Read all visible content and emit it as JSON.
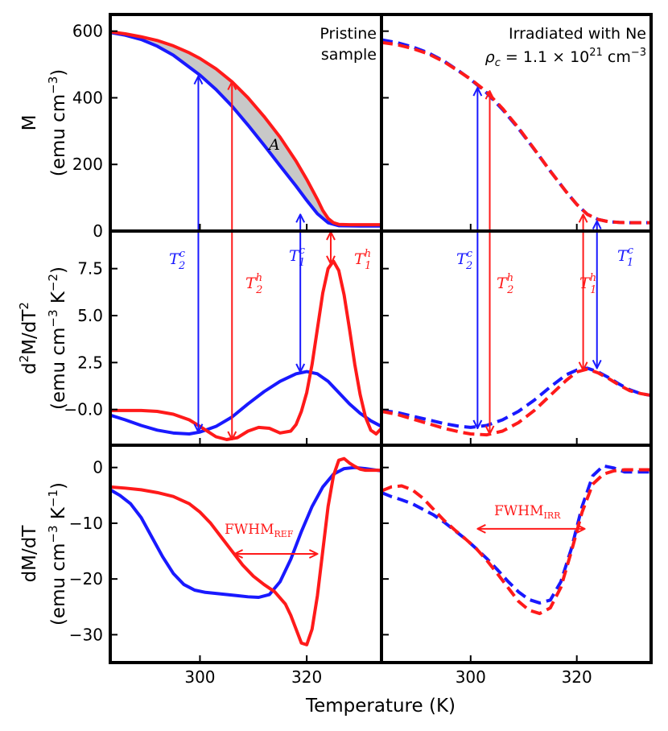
{
  "colors": {
    "blue": "#1919ff",
    "red": "#ff1a1a",
    "shade": "#c8c8c8",
    "frame": "#000000"
  },
  "chart_data": {
    "type": "line",
    "xlabel": "Temperature (K)",
    "xlim": [
      283.2,
      334.0
    ],
    "xticks": [
      300,
      320
    ],
    "xtick_labels": [
      "300",
      "320"
    ],
    "panels_left_title": "Pristine sample",
    "panels_right_title": "Irradiated with Ne",
    "right_note_rho": "ρ",
    "right_note_rho_sub": "c",
    "right_note_value": " = 1.1 × 10",
    "right_note_exp": "21",
    "right_note_unit": " cm",
    "right_note_unit_exp": "−3",
    "rows": [
      {
        "ylabel_line1": "M",
        "ylabel_line2": "(emu cm",
        "ylabel_exp": "−3",
        "ylabel_close": ")",
        "ylim": [
          0,
          650
        ],
        "yticks": [
          0,
          200,
          400,
          600
        ],
        "ytick_labels": [
          "0",
          "200",
          "400",
          "600"
        ],
        "area_label": "A"
      },
      {
        "ylabel_line1": "d",
        "ylabel_line1_sup": "2",
        "ylabel_line1_rest": "M/dT",
        "ylabel_line1_sup2": "2",
        "ylabel_line2": "(emu cm",
        "ylabel_exp": "−3",
        "ylabel_mid": " K",
        "ylabel_exp2": "−2",
        "ylabel_close": ")",
        "ylim": [
          -1.9,
          9.5
        ],
        "yticks": [
          -0.0,
          2.5,
          5.0,
          7.5
        ],
        "ytick_labels": [
          "−0.0",
          "2.5",
          "5.0",
          "7.5"
        ]
      },
      {
        "ylabel_line1": "dM/dT",
        "ylabel_line2": "(emu cm",
        "ylabel_exp": "−3",
        "ylabel_mid": " K",
        "ylabel_exp2": "−1",
        "ylabel_close": ")",
        "ylim": [
          -35,
          4
        ],
        "yticks": [
          0,
          -10,
          -20,
          -30
        ],
        "ytick_labels": [
          "0",
          "−10",
          "−20",
          "−30"
        ]
      }
    ],
    "annotations": {
      "T2c": {
        "base": "T",
        "sub": "2",
        "sup": "c"
      },
      "T2h": {
        "base": "T",
        "sub": "2",
        "sup": "h"
      },
      "T1c": {
        "base": "T",
        "sub": "1",
        "sup": "c"
      },
      "T1h": {
        "base": "T",
        "sub": "1",
        "sup": "h"
      },
      "fwhm_ref": {
        "base": "FWHM",
        "sub": "REF"
      },
      "fwhm_irr": {
        "base": "FWHM",
        "sub": "IRR"
      }
    },
    "series": {
      "left_M_blue": {
        "x": [
          283.2,
          286,
          289,
          292,
          295,
          298,
          300,
          303,
          306,
          309,
          312,
          315,
          318,
          320,
          322,
          324,
          326,
          330,
          334
        ],
        "y": [
          596,
          588,
          575,
          555,
          528,
          492,
          468,
          425,
          375,
          318,
          258,
          196,
          135,
          92,
          52,
          25,
          16,
          15,
          15
        ]
      },
      "left_M_red": {
        "x": [
          283.2,
          286,
          289,
          292,
          295,
          298,
          300,
          303,
          306,
          309,
          312,
          315,
          318,
          320,
          322,
          323,
          324,
          325,
          326,
          328,
          330,
          334
        ],
        "y": [
          598,
          592,
          583,
          572,
          556,
          535,
          518,
          487,
          448,
          400,
          344,
          282,
          210,
          155,
          95,
          62,
          38,
          25,
          20,
          19,
          19,
          19
        ]
      },
      "left_d2_blue": {
        "x": [
          283.2,
          286,
          289,
          292,
          295,
          298,
          300,
          303,
          306,
          309,
          312,
          315,
          318,
          320,
          322,
          324,
          326,
          328,
          330,
          332,
          334
        ],
        "y": [
          -0.3,
          -0.55,
          -0.85,
          -1.1,
          -1.25,
          -1.3,
          -1.2,
          -0.9,
          -0.4,
          0.3,
          0.95,
          1.5,
          1.9,
          2.02,
          1.9,
          1.5,
          0.9,
          0.3,
          -0.2,
          -0.6,
          -0.9
        ]
      },
      "left_d2_red": {
        "x": [
          283.2,
          286,
          289,
          292,
          295,
          298,
          300,
          303,
          305,
          307,
          309,
          311,
          313,
          315,
          317,
          318,
          319,
          320,
          321,
          322,
          323,
          324,
          325,
          326,
          327,
          328,
          329,
          330,
          331,
          332,
          333,
          334
        ],
        "y": [
          -0.05,
          -0.05,
          -0.05,
          -0.1,
          -0.25,
          -0.55,
          -0.9,
          -1.45,
          -1.6,
          -1.5,
          -1.15,
          -0.95,
          -1.0,
          -1.25,
          -1.15,
          -0.8,
          -0.1,
          0.9,
          2.4,
          4.3,
          6.2,
          7.5,
          7.9,
          7.4,
          6.1,
          4.3,
          2.4,
          0.8,
          -0.4,
          -1.1,
          -1.3,
          -1.0
        ]
      },
      "left_d1_blue": {
        "x": [
          283.2,
          285,
          287,
          289,
          291,
          293,
          295,
          297,
          299,
          301,
          303,
          305,
          307,
          309,
          311,
          313,
          315,
          317,
          319,
          321,
          323,
          325,
          327,
          329,
          331,
          334
        ],
        "y": [
          -4,
          -5,
          -6.5,
          -9,
          -12.5,
          -16,
          -19,
          -21,
          -22,
          -22.4,
          -22.6,
          -22.8,
          -23,
          -23.2,
          -23.3,
          -22.8,
          -20.5,
          -16.5,
          -11.5,
          -7,
          -3.5,
          -1.2,
          -0.2,
          0,
          -0.2,
          -0.6
        ]
      },
      "left_d1_red": {
        "x": [
          283.2,
          286,
          289,
          292,
          295,
          298,
          300,
          302,
          304,
          306,
          308,
          310,
          312,
          314,
          316,
          317,
          318,
          319,
          320,
          321,
          322,
          323,
          324,
          325,
          326,
          327,
          328,
          329,
          330,
          331,
          332,
          334
        ],
        "y": [
          -3.5,
          -3.7,
          -4,
          -4.5,
          -5.2,
          -6.5,
          -8,
          -10,
          -12.5,
          -15,
          -17.5,
          -19.5,
          -21,
          -22.3,
          -24.5,
          -26.5,
          -29,
          -31.5,
          -31.8,
          -29,
          -23,
          -15,
          -7,
          -1.5,
          1.3,
          1.6,
          0.8,
          0.2,
          -0.3,
          -0.5,
          -0.5,
          -0.5
        ]
      },
      "right_M_blue": {
        "x": [
          283.2,
          286,
          289,
          292,
          295,
          298,
          300,
          303,
          306,
          309,
          312,
          315,
          318,
          320,
          322,
          324,
          326,
          328,
          330,
          334
        ],
        "y": [
          574,
          566,
          553,
          535,
          510,
          478,
          455,
          415,
          365,
          308,
          245,
          180,
          118,
          80,
          50,
          35,
          28,
          26,
          25,
          25
        ]
      },
      "right_M_red": {
        "x": [
          283.2,
          286,
          289,
          292,
          295,
          298,
          300,
          303,
          306,
          309,
          312,
          315,
          318,
          320,
          322,
          324,
          326,
          328,
          330,
          334
        ],
        "y": [
          566,
          560,
          548,
          532,
          508,
          477,
          456,
          418,
          368,
          310,
          246,
          180,
          118,
          80,
          50,
          35,
          28,
          26,
          25,
          25
        ]
      },
      "right_d2_blue": {
        "x": [
          283.2,
          286,
          289,
          292,
          295,
          298,
          300,
          303,
          306,
          309,
          312,
          315,
          318,
          320,
          322,
          324,
          326,
          328,
          330,
          332,
          334
        ],
        "y": [
          -0.05,
          -0.15,
          -0.35,
          -0.55,
          -0.75,
          -0.9,
          -0.95,
          -0.85,
          -0.55,
          -0.1,
          0.5,
          1.2,
          1.85,
          2.1,
          2.2,
          2.0,
          1.7,
          1.35,
          1.05,
          0.85,
          0.75
        ]
      },
      "right_d2_red": {
        "x": [
          283.2,
          286,
          289,
          292,
          295,
          298,
          300,
          303,
          306,
          309,
          312,
          315,
          318,
          320,
          322,
          324,
          326,
          328,
          330,
          332,
          334
        ],
        "y": [
          -0.1,
          -0.25,
          -0.5,
          -0.75,
          -1.0,
          -1.2,
          -1.3,
          -1.35,
          -1.15,
          -0.7,
          -0.05,
          0.75,
          1.55,
          2.0,
          2.15,
          1.95,
          1.65,
          1.3,
          1.0,
          0.85,
          0.75
        ]
      },
      "right_d1_blue": {
        "x": [
          283.2,
          285,
          287,
          289,
          291,
          293,
          295,
          297,
          299,
          301,
          303,
          305,
          307,
          309,
          311,
          313,
          315,
          317,
          319,
          321,
          323,
          325,
          327,
          329,
          331,
          334
        ],
        "y": [
          -4.5,
          -5.2,
          -5.8,
          -6.5,
          -7.5,
          -8.5,
          -9.8,
          -11.3,
          -12.8,
          -14.5,
          -16.3,
          -18.3,
          -20.4,
          -22.3,
          -23.7,
          -24.3,
          -23.8,
          -20.5,
          -14.5,
          -7,
          -1.5,
          0.3,
          -0.1,
          -0.8,
          -0.8,
          -0.8
        ]
      },
      "right_d1_red": {
        "x": [
          283.2,
          285,
          287,
          289,
          291,
          293,
          295,
          297,
          299,
          301,
          303,
          305,
          307,
          309,
          311,
          313,
          315,
          317,
          319,
          321,
          323,
          325,
          327,
          329,
          331,
          334
        ],
        "y": [
          -4.2,
          -3.5,
          -3.3,
          -4,
          -5.5,
          -7.5,
          -9.5,
          -11.2,
          -12.8,
          -14.5,
          -16.6,
          -19,
          -21.5,
          -24,
          -25.6,
          -26.2,
          -25.2,
          -21.5,
          -15,
          -8,
          -3,
          -1.2,
          -0.6,
          -0.4,
          -0.4,
          -0.4
        ]
      }
    }
  }
}
